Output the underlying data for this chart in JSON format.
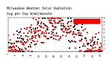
{
  "title": "Milwaukee Weather Solar Radiation",
  "subtitle": "Avg per Day W/m2/minute",
  "title_fontsize": 3.5,
  "background_color": "#ffffff",
  "plot_bg_color": "#ffffff",
  "grid_color": "#bbbbbb",
  "x_min": 0,
  "x_max": 365,
  "y_min": 0,
  "y_max": 9,
  "y_ticks": [
    1,
    2,
    3,
    4,
    5,
    6,
    7,
    8,
    9
  ],
  "dot_size": 0.8,
  "red_color": "#ff0000",
  "black_color": "#000000",
  "month_days": [
    1,
    32,
    60,
    91,
    121,
    152,
    182,
    213,
    244,
    274,
    305,
    335,
    365
  ]
}
